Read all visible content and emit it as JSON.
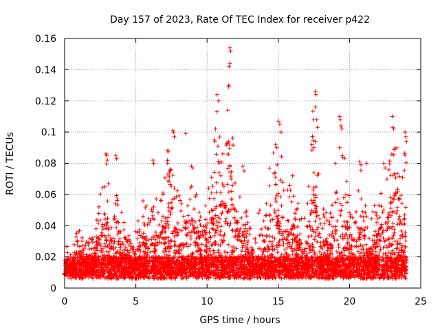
{
  "chart_data": {
    "type": "scatter",
    "title": "Day 157 of 2023, Rate Of TEC Index for receiver p422",
    "xlabel": "GPS time / hours",
    "ylabel": "ROTI / TECUs",
    "xlim": [
      0,
      25
    ],
    "ylim": [
      0,
      0.16
    ],
    "xticks": [
      "0",
      "5",
      "10",
      "15",
      "20",
      "25"
    ],
    "yticks": [
      "0",
      "0.02",
      "0.04",
      "0.06",
      "0.08",
      "0.1",
      "0.12",
      "0.14",
      "0.16"
    ],
    "grid": true,
    "marker": "+",
    "color": "#ff0000",
    "envelope": {
      "description_units": "upper extent of the dense point cloud by hour (hours, ROTI)",
      "x": [
        0,
        0.5,
        1.0,
        1.5,
        2.0,
        2.5,
        2.9,
        3.3,
        3.7,
        4.2,
        4.8,
        5.5,
        6.0,
        6.5,
        7.0,
        7.5,
        7.7,
        8.2,
        8.8,
        9.3,
        9.8,
        10.3,
        10.8,
        11.2,
        11.6,
        12.0,
        12.5,
        13.0,
        13.5,
        14.0,
        14.5,
        15.0,
        15.5,
        16.0,
        16.5,
        17.0,
        17.5,
        18.0,
        18.5,
        19.0,
        19.4,
        19.8,
        20.3,
        20.8,
        21.3,
        21.8,
        22.3,
        22.8,
        23.2,
        23.6,
        24.0
      ],
      "y": [
        0.03,
        0.022,
        0.045,
        0.03,
        0.035,
        0.06,
        0.085,
        0.05,
        0.07,
        0.045,
        0.03,
        0.058,
        0.05,
        0.06,
        0.07,
        0.1,
        0.07,
        0.06,
        0.08,
        0.065,
        0.06,
        0.075,
        0.1,
        0.09,
        0.153,
        0.075,
        0.06,
        0.04,
        0.03,
        0.045,
        0.09,
        0.107,
        0.06,
        0.07,
        0.05,
        0.045,
        0.125,
        0.06,
        0.045,
        0.065,
        0.11,
        0.07,
        0.05,
        0.08,
        0.04,
        0.06,
        0.07,
        0.085,
        0.11,
        0.07,
        0.1
      ]
    },
    "points": [
      [
        10.7,
        0.124
      ],
      [
        10.8,
        0.12
      ],
      [
        10.7,
        0.113
      ],
      [
        10.6,
        0.102
      ],
      [
        10.5,
        0.095
      ],
      [
        10.55,
        0.094
      ],
      [
        11.6,
        0.154
      ],
      [
        11.65,
        0.152
      ],
      [
        11.6,
        0.144
      ],
      [
        11.55,
        0.142
      ],
      [
        11.5,
        0.094
      ],
      [
        11.4,
        0.093
      ],
      [
        11.1,
        0.086
      ],
      [
        17.6,
        0.126
      ],
      [
        17.65,
        0.124
      ],
      [
        17.6,
        0.116
      ],
      [
        17.7,
        0.108
      ],
      [
        17.75,
        0.103
      ],
      [
        17.6,
        0.094
      ],
      [
        17.5,
        0.09
      ],
      [
        19.3,
        0.11
      ],
      [
        19.35,
        0.108
      ],
      [
        19.4,
        0.104
      ],
      [
        19.45,
        0.102
      ],
      [
        19.3,
        0.09
      ],
      [
        19.5,
        0.085
      ],
      [
        23.0,
        0.11
      ],
      [
        23.05,
        0.103
      ],
      [
        23.1,
        0.102
      ],
      [
        23.9,
        0.1
      ],
      [
        23.95,
        0.097
      ],
      [
        24.0,
        0.094
      ],
      [
        7.6,
        0.101
      ],
      [
        7.65,
        0.1
      ],
      [
        7.7,
        0.097
      ],
      [
        8.5,
        0.099
      ],
      [
        15.0,
        0.107
      ],
      [
        15.1,
        0.105
      ],
      [
        15.2,
        0.1
      ],
      [
        14.8,
        0.092
      ],
      [
        14.9,
        0.09
      ],
      [
        2.9,
        0.086
      ],
      [
        2.95,
        0.085
      ],
      [
        3.0,
        0.082
      ],
      [
        3.6,
        0.085
      ],
      [
        3.65,
        0.083
      ],
      [
        6.2,
        0.082
      ],
      [
        6.25,
        0.08
      ],
      [
        7.2,
        0.088
      ],
      [
        8.9,
        0.078
      ],
      [
        9.0,
        0.077
      ],
      [
        12.5,
        0.078
      ],
      [
        12.6,
        0.075
      ],
      [
        16.0,
        0.072
      ],
      [
        20.7,
        0.081
      ],
      [
        20.8,
        0.079
      ],
      [
        21.2,
        0.08
      ],
      [
        22.4,
        0.08
      ],
      [
        22.5,
        0.077
      ],
      [
        19.0,
        0.08
      ],
      [
        13.7,
        0.05
      ],
      [
        13.6,
        0.048
      ]
    ]
  }
}
